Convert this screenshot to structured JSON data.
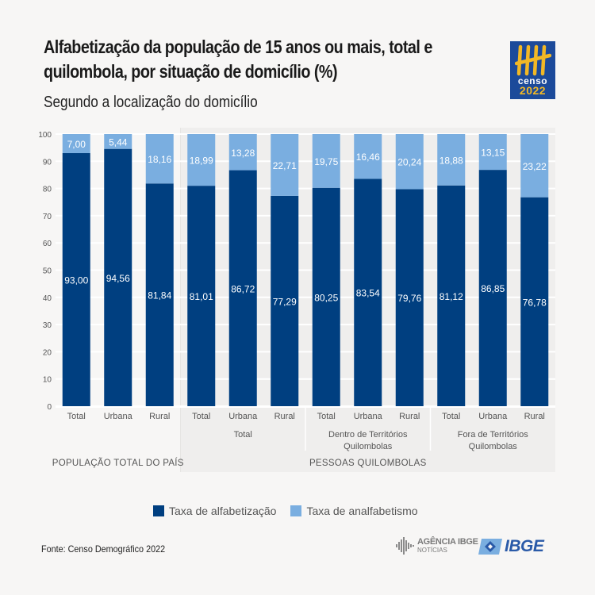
{
  "header": {
    "title_line1": "Alfabetização da população de 15 anos ou mais, total e",
    "title_line2": "quilombola, por situação de domicílio (%)",
    "subtitle": "Segundo a localização do domicílio",
    "logo_word": "censo",
    "logo_year": "2022"
  },
  "colors": {
    "alfabetizacao": "#003f80",
    "analfabetismo": "#7aaee0",
    "background": "#f7f6f5",
    "group_background": "#efeeed"
  },
  "chart_data": {
    "type": "bar",
    "stacked": true,
    "title": "Alfabetização da população de 15 anos ou mais, total e quilombola, por situação de domicílio (%)",
    "subtitle": "Segundo a localização do domicílio",
    "ylim": [
      0,
      100
    ],
    "yticks": [
      0,
      10,
      20,
      30,
      40,
      50,
      60,
      70,
      80,
      90,
      100
    ],
    "grid": true,
    "legend_position": "bottom",
    "categories": [
      "Total",
      "Urbana",
      "Rural",
      "Total",
      "Urbana",
      "Rural",
      "Total",
      "Urbana",
      "Rural",
      "Total",
      "Urbana",
      "Rural"
    ],
    "subgroups": [
      {
        "label": "",
        "start": 0,
        "count": 3
      },
      {
        "label": "Total",
        "start": 3,
        "count": 3
      },
      {
        "label": "Dentro de Territórios Quilombolas",
        "start": 6,
        "count": 3
      },
      {
        "label": "Fora de Territórios Quilombolas",
        "start": 9,
        "count": 3
      }
    ],
    "groups": [
      {
        "label": "POPULAÇÃO TOTAL DO PAÍS",
        "start": 0,
        "count": 3
      },
      {
        "label": "PESSOAS QUILOMBOLAS",
        "start": 3,
        "count": 9
      }
    ],
    "series": [
      {
        "name": "Taxa de alfabetização",
        "values": [
          93.0,
          94.56,
          81.84,
          81.01,
          86.72,
          77.29,
          80.25,
          83.54,
          79.76,
          81.12,
          86.85,
          76.78
        ]
      },
      {
        "name": "Taxa de analfabetismo",
        "values": [
          7.0,
          5.44,
          18.16,
          18.99,
          13.28,
          22.71,
          19.75,
          16.46,
          20.24,
          18.88,
          13.15,
          23.22
        ]
      }
    ]
  },
  "legend": {
    "items": [
      {
        "label": "Taxa de alfabetização"
      },
      {
        "label": "Taxa de analfabetismo"
      }
    ]
  },
  "footer": {
    "source": "Fonte: Censo Demográfico 2022",
    "agencia_line1": "AGÊNCIA IBGE",
    "agencia_line2": "NOTÍCIAS",
    "ibge_word": "IBGE"
  }
}
